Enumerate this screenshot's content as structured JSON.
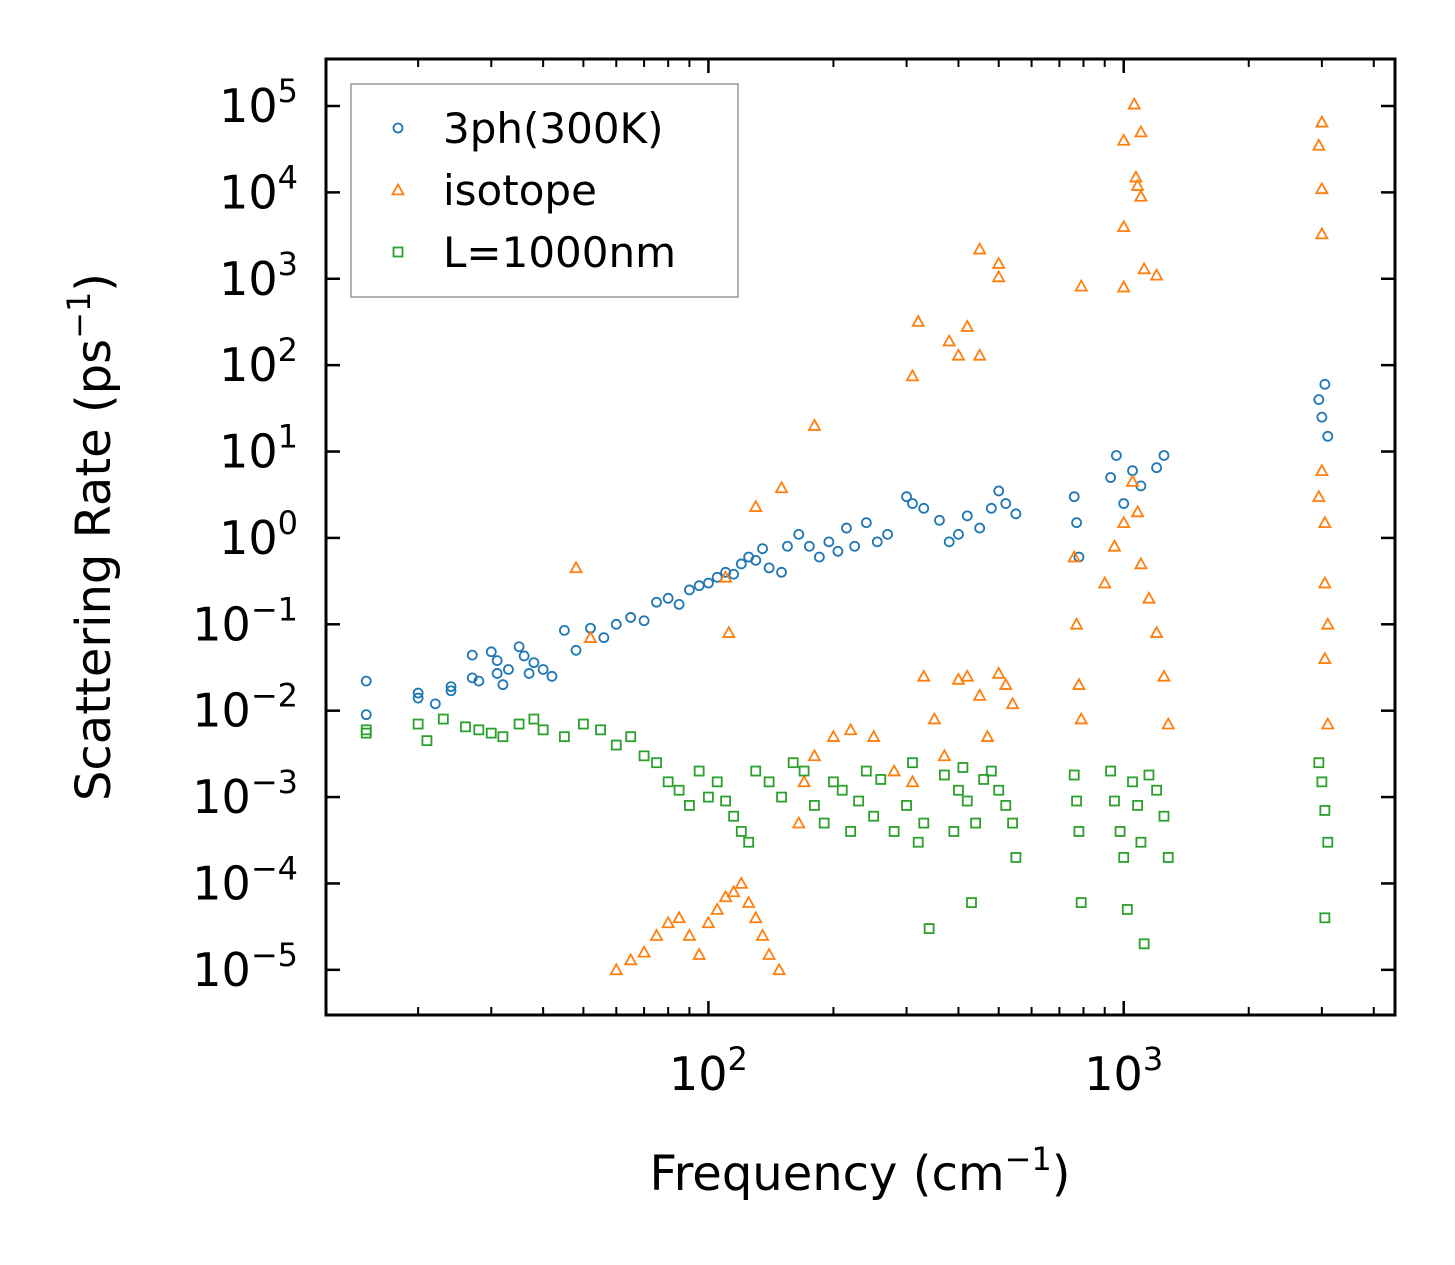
{
  "chart_data": {
    "type": "scatter",
    "xscale": "log",
    "yscale": "log",
    "xlim": [
      12,
      4500
    ],
    "ylim": [
      3e-06,
      350000.0
    ],
    "xlabel": {
      "text": "Frequency (cm",
      "sup": "−1",
      "close": ")"
    },
    "ylabel": {
      "text": "Scattering Rate (ps",
      "sup": "−1",
      "close": ")"
    },
    "x_ticks": [
      {
        "value": 100,
        "base": "10",
        "exp": "2"
      },
      {
        "value": 1000,
        "base": "10",
        "exp": "3"
      }
    ],
    "y_ticks": [
      {
        "value": 1e-05,
        "base": "10",
        "exp": "−5"
      },
      {
        "value": 0.0001,
        "base": "10",
        "exp": "−4"
      },
      {
        "value": 0.001,
        "base": "10",
        "exp": "−3"
      },
      {
        "value": 0.01,
        "base": "10",
        "exp": "−2"
      },
      {
        "value": 0.1,
        "base": "10",
        "exp": "−1"
      },
      {
        "value": 1,
        "base": "10",
        "exp": "0"
      },
      {
        "value": 10,
        "base": "10",
        "exp": "1"
      },
      {
        "value": 100,
        "base": "10",
        "exp": "2"
      },
      {
        "value": 1000,
        "base": "10",
        "exp": "3"
      },
      {
        "value": 10000,
        "base": "10",
        "exp": "4"
      },
      {
        "value": 100000,
        "base": "10",
        "exp": "5"
      }
    ],
    "legend_position": "top-left",
    "series": [
      {
        "name": "3ph(300K)",
        "color": "#1f77b4",
        "marker": "circle",
        "points": [
          [
            15,
            0.022
          ],
          [
            15,
            0.009
          ],
          [
            20,
            0.016
          ],
          [
            20,
            0.014
          ],
          [
            22,
            0.012
          ],
          [
            24,
            0.019
          ],
          [
            24,
            0.017
          ],
          [
            27,
            0.024
          ],
          [
            27,
            0.044
          ],
          [
            28,
            0.022
          ],
          [
            30,
            0.048
          ],
          [
            31,
            0.038
          ],
          [
            31,
            0.027
          ],
          [
            32,
            0.02
          ],
          [
            33,
            0.03
          ],
          [
            35,
            0.055
          ],
          [
            36,
            0.043
          ],
          [
            37,
            0.027
          ],
          [
            38,
            0.036
          ],
          [
            40,
            0.03
          ],
          [
            42,
            0.025
          ],
          [
            45,
            0.085
          ],
          [
            48,
            0.05
          ],
          [
            52,
            0.09
          ],
          [
            56,
            0.07
          ],
          [
            60,
            0.1
          ],
          [
            65,
            0.12
          ],
          [
            70,
            0.11
          ],
          [
            75,
            0.18
          ],
          [
            80,
            0.2
          ],
          [
            85,
            0.17
          ],
          [
            90,
            0.25
          ],
          [
            95,
            0.28
          ],
          [
            100,
            0.3
          ],
          [
            105,
            0.35
          ],
          [
            110,
            0.4
          ],
          [
            115,
            0.38
          ],
          [
            120,
            0.5
          ],
          [
            125,
            0.6
          ],
          [
            130,
            0.55
          ],
          [
            135,
            0.75
          ],
          [
            140,
            0.45
          ],
          [
            150,
            0.4
          ],
          [
            155,
            0.8
          ],
          [
            165,
            1.1
          ],
          [
            175,
            0.8
          ],
          [
            185,
            0.6
          ],
          [
            195,
            0.9
          ],
          [
            205,
            0.7
          ],
          [
            215,
            1.3
          ],
          [
            225,
            0.8
          ],
          [
            240,
            1.5
          ],
          [
            255,
            0.9
          ],
          [
            270,
            1.1
          ],
          [
            300,
            3.0
          ],
          [
            310,
            2.5
          ],
          [
            330,
            2.2
          ],
          [
            360,
            1.6
          ],
          [
            380,
            0.9
          ],
          [
            400,
            1.1
          ],
          [
            420,
            1.8
          ],
          [
            450,
            1.3
          ],
          [
            480,
            2.2
          ],
          [
            500,
            3.5
          ],
          [
            520,
            2.5
          ],
          [
            550,
            1.9
          ],
          [
            760,
            3.0
          ],
          [
            770,
            1.5
          ],
          [
            780,
            0.6
          ],
          [
            930,
            5.0
          ],
          [
            960,
            9.0
          ],
          [
            1000,
            2.5
          ],
          [
            1050,
            6.0
          ],
          [
            1100,
            4.0
          ],
          [
            1200,
            6.5
          ],
          [
            1250,
            9.0
          ],
          [
            2950,
            40
          ],
          [
            3000,
            25
          ],
          [
            3050,
            60
          ],
          [
            3100,
            15
          ]
        ]
      },
      {
        "name": "isotope",
        "color": "#ff7f0e",
        "marker": "triangle",
        "points": [
          [
            48,
            0.45
          ],
          [
            52,
            0.07
          ],
          [
            110,
            0.35
          ],
          [
            112,
            0.08
          ],
          [
            130,
            2.3
          ],
          [
            150,
            3.8
          ],
          [
            180,
            20
          ],
          [
            310,
            75
          ],
          [
            320,
            320
          ],
          [
            380,
            190
          ],
          [
            400,
            130
          ],
          [
            420,
            280
          ],
          [
            450,
            2200
          ],
          [
            500,
            1500
          ],
          [
            500,
            1050
          ],
          [
            450,
            130
          ],
          [
            790,
            820
          ],
          [
            1000,
            40000
          ],
          [
            1000,
            4000
          ],
          [
            1000,
            800
          ],
          [
            1060,
            105000
          ],
          [
            1070,
            15000
          ],
          [
            1080,
            12000
          ],
          [
            1100,
            50000
          ],
          [
            1100,
            9000
          ],
          [
            1120,
            1300
          ],
          [
            1200,
            1100
          ],
          [
            2950,
            35000
          ],
          [
            3000,
            65000
          ],
          [
            3000,
            11000
          ],
          [
            3000,
            3300
          ],
          [
            60,
            1e-05
          ],
          [
            65,
            1.3e-05
          ],
          [
            70,
            1.6e-05
          ],
          [
            75,
            2.5e-05
          ],
          [
            80,
            3.5e-05
          ],
          [
            85,
            4e-05
          ],
          [
            90,
            2.5e-05
          ],
          [
            95,
            1.5e-05
          ],
          [
            100,
            3.5e-05
          ],
          [
            105,
            5e-05
          ],
          [
            110,
            7e-05
          ],
          [
            115,
            8e-05
          ],
          [
            120,
            0.0001
          ],
          [
            125,
            6e-05
          ],
          [
            130,
            4e-05
          ],
          [
            135,
            2.5e-05
          ],
          [
            140,
            1.5e-05
          ],
          [
            148,
            1e-05
          ],
          [
            165,
            0.0005
          ],
          [
            170,
            0.0015
          ],
          [
            180,
            0.003
          ],
          [
            200,
            0.005
          ],
          [
            220,
            0.006
          ],
          [
            250,
            0.005
          ],
          [
            280,
            0.002
          ],
          [
            310,
            0.0015
          ],
          [
            330,
            0.025
          ],
          [
            350,
            0.008
          ],
          [
            370,
            0.003
          ],
          [
            400,
            0.023
          ],
          [
            420,
            0.025
          ],
          [
            450,
            0.015
          ],
          [
            470,
            0.005
          ],
          [
            500,
            0.027
          ],
          [
            520,
            0.02
          ],
          [
            540,
            0.012
          ],
          [
            760,
            0.6
          ],
          [
            770,
            0.1
          ],
          [
            780,
            0.02
          ],
          [
            790,
            0.008
          ],
          [
            900,
            0.3
          ],
          [
            950,
            0.8
          ],
          [
            1000,
            1.5
          ],
          [
            1050,
            4.5
          ],
          [
            1080,
            2.0
          ],
          [
            1100,
            0.5
          ],
          [
            1150,
            0.2
          ],
          [
            1200,
            0.08
          ],
          [
            1250,
            0.025
          ],
          [
            1280,
            0.007
          ],
          [
            2950,
            3.0
          ],
          [
            3000,
            6.0
          ],
          [
            3050,
            1.5
          ],
          [
            3050,
            0.3
          ],
          [
            3100,
            0.1
          ],
          [
            3050,
            0.04
          ],
          [
            3100,
            0.007
          ]
        ]
      },
      {
        "name": "L=1000nm",
        "color": "#2ca02c",
        "marker": "square",
        "points": [
          [
            15,
            0.006
          ],
          [
            15,
            0.0055
          ],
          [
            20,
            0.007
          ],
          [
            21,
            0.0045
          ],
          [
            23,
            0.008
          ],
          [
            26,
            0.0065
          ],
          [
            28,
            0.006
          ],
          [
            30,
            0.0055
          ],
          [
            32,
            0.005
          ],
          [
            35,
            0.007
          ],
          [
            38,
            0.008
          ],
          [
            40,
            0.006
          ],
          [
            45,
            0.005
          ],
          [
            50,
            0.007
          ],
          [
            55,
            0.006
          ],
          [
            60,
            0.004
          ],
          [
            65,
            0.005
          ],
          [
            70,
            0.003
          ],
          [
            75,
            0.0025
          ],
          [
            80,
            0.0015
          ],
          [
            85,
            0.0012
          ],
          [
            90,
            0.0008
          ],
          [
            95,
            0.002
          ],
          [
            100,
            0.001
          ],
          [
            105,
            0.0015
          ],
          [
            110,
            0.0009
          ],
          [
            115,
            0.0006
          ],
          [
            120,
            0.0004
          ],
          [
            125,
            0.0003
          ],
          [
            130,
            0.002
          ],
          [
            140,
            0.0015
          ],
          [
            150,
            0.001
          ],
          [
            160,
            0.0025
          ],
          [
            170,
            0.002
          ],
          [
            180,
            0.0008
          ],
          [
            190,
            0.0005
          ],
          [
            200,
            0.0015
          ],
          [
            210,
            0.0012
          ],
          [
            220,
            0.0004
          ],
          [
            230,
            0.0009
          ],
          [
            240,
            0.002
          ],
          [
            250,
            0.0006
          ],
          [
            260,
            0.0016
          ],
          [
            280,
            0.0004
          ],
          [
            300,
            0.0008
          ],
          [
            310,
            0.0025
          ],
          [
            320,
            0.0003
          ],
          [
            330,
            0.0005
          ],
          [
            340,
            3e-05
          ],
          [
            370,
            0.0018
          ],
          [
            390,
            0.0004
          ],
          [
            400,
            0.0012
          ],
          [
            410,
            0.0022
          ],
          [
            420,
            0.0009
          ],
          [
            430,
            6e-05
          ],
          [
            440,
            0.0005
          ],
          [
            460,
            0.0016
          ],
          [
            480,
            0.002
          ],
          [
            500,
            0.0012
          ],
          [
            520,
            0.0008
          ],
          [
            540,
            0.0005
          ],
          [
            550,
            0.0002
          ],
          [
            760,
            0.0018
          ],
          [
            770,
            0.0009
          ],
          [
            780,
            0.0004
          ],
          [
            790,
            6e-05
          ],
          [
            930,
            0.002
          ],
          [
            950,
            0.0009
          ],
          [
            980,
            0.0004
          ],
          [
            1000,
            0.0002
          ],
          [
            1020,
            5e-05
          ],
          [
            1050,
            0.0015
          ],
          [
            1080,
            0.0008
          ],
          [
            1100,
            0.0003
          ],
          [
            1120,
            2e-05
          ],
          [
            1150,
            0.0018
          ],
          [
            1200,
            0.0012
          ],
          [
            1250,
            0.0006
          ],
          [
            1280,
            0.0002
          ],
          [
            2950,
            0.0025
          ],
          [
            3000,
            0.0015
          ],
          [
            3050,
            0.0007
          ],
          [
            3100,
            0.0003
          ],
          [
            3050,
            4e-05
          ]
        ]
      }
    ]
  }
}
